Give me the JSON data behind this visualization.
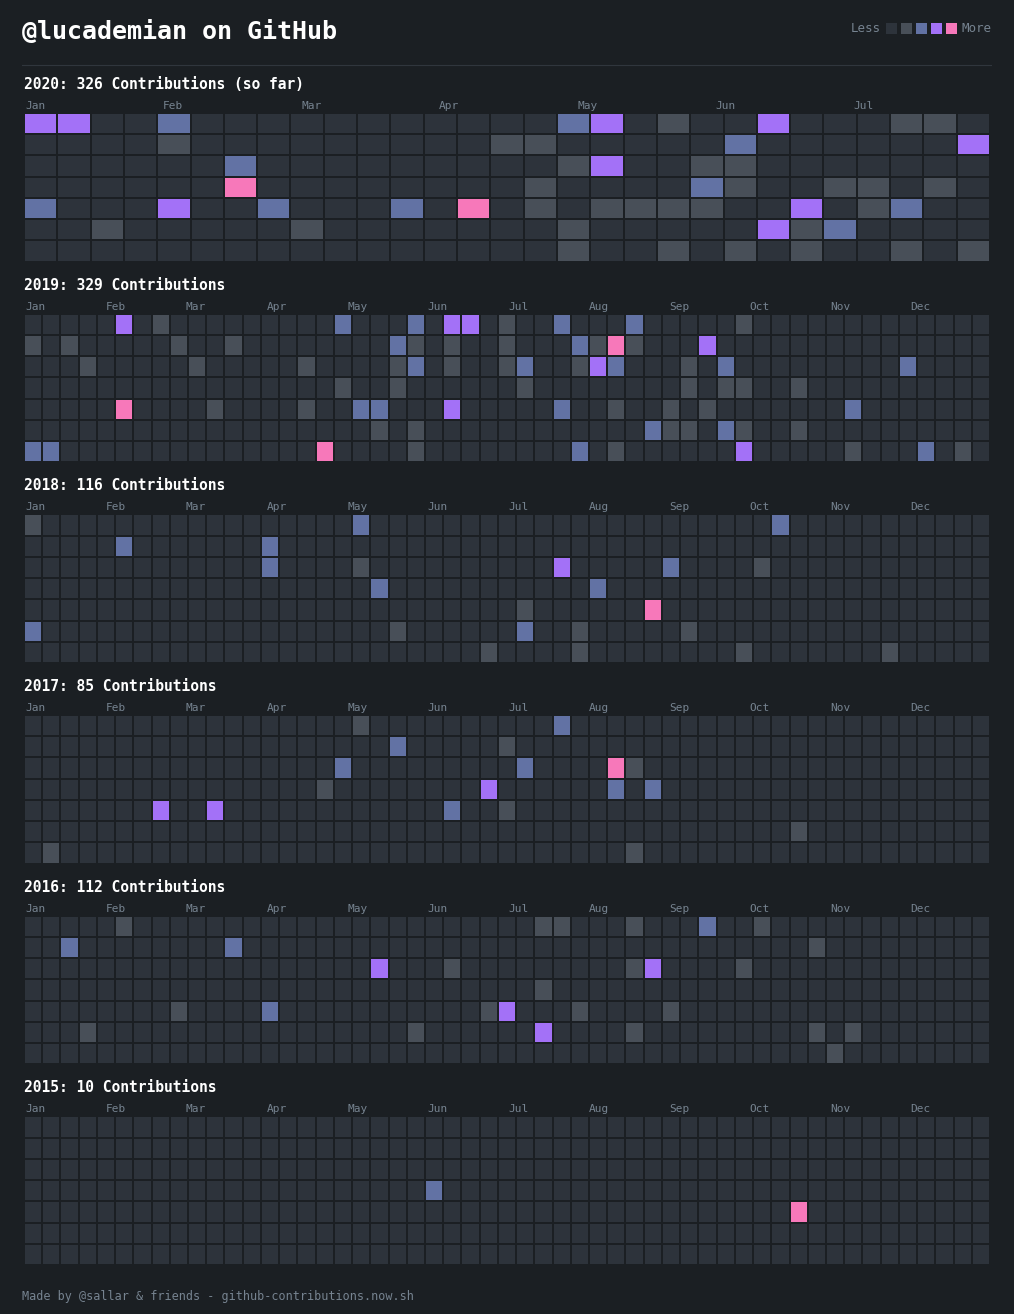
{
  "title": "@lucademian on GitHub",
  "bg_color": "#1b1f23",
  "cell_empty": "#2d333b",
  "cell_border_color": "#1b1f23",
  "text_color": "#ffffff",
  "month_label_color": "#768390",
  "footer_text": "Made by @sallar & friends - github-contributions.now.sh",
  "footer_color": "#768390",
  "legend_colors": [
    "#2d333b",
    "#484f58",
    "#6272a4",
    "#a371f7",
    "#f778ba"
  ],
  "separator_color": "#30363d",
  "years": [
    {
      "year": 2020,
      "label": "2020: 326 Contributions (so far)",
      "months": [
        "Jan",
        "Feb",
        "Mar",
        "Apr",
        "May",
        "Jun",
        "Jul"
      ],
      "num_weeks": 29,
      "total": 326
    },
    {
      "year": 2019,
      "label": "2019: 329 Contributions",
      "months": [
        "Jan",
        "Feb",
        "Mar",
        "Apr",
        "May",
        "Jun",
        "Jul",
        "Aug",
        "Sep",
        "Oct",
        "Nov",
        "Dec"
      ],
      "num_weeks": 53,
      "total": 329
    },
    {
      "year": 2018,
      "label": "2018: 116 Contributions",
      "months": [
        "Jan",
        "Feb",
        "Mar",
        "Apr",
        "May",
        "Jun",
        "Jul",
        "Aug",
        "Sep",
        "Oct",
        "Nov",
        "Dec"
      ],
      "num_weeks": 53,
      "total": 116
    },
    {
      "year": 2017,
      "label": "2017: 85 Contributions",
      "months": [
        "Jan",
        "Feb",
        "Mar",
        "Apr",
        "May",
        "Jun",
        "Jul",
        "Aug",
        "Sep",
        "Oct",
        "Nov",
        "Dec"
      ],
      "num_weeks": 53,
      "total": 85
    },
    {
      "year": 2016,
      "label": "2016: 112 Contributions",
      "months": [
        "Jan",
        "Feb",
        "Mar",
        "Apr",
        "May",
        "Jun",
        "Jul",
        "Aug",
        "Sep",
        "Oct",
        "Nov",
        "Dec"
      ],
      "num_weeks": 53,
      "total": 112
    },
    {
      "year": 2015,
      "label": "2015: 10 Contributions",
      "months": [
        "Jan",
        "Feb",
        "Mar",
        "Apr",
        "May",
        "Jun",
        "Jul",
        "Aug",
        "Sep",
        "Oct",
        "Nov",
        "Dec"
      ],
      "num_weeks": 53,
      "total": 10
    }
  ],
  "color_levels": [
    "#2d333b",
    "#484f58",
    "#6272a4",
    "#a371f7",
    "#f778ba"
  ],
  "color_probs": [
    0.55,
    0.25,
    0.12,
    0.05,
    0.03
  ]
}
